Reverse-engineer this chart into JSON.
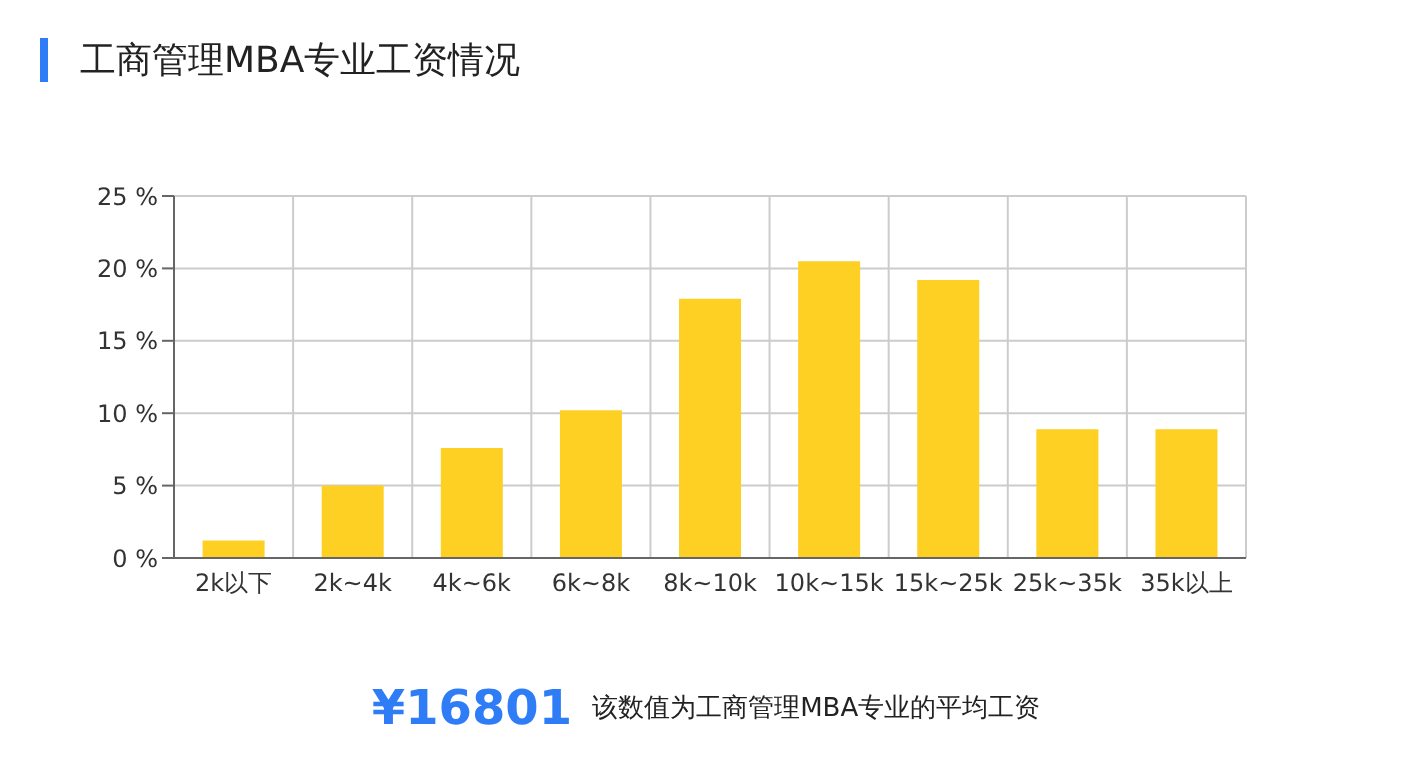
{
  "chart_data": {
    "type": "bar",
    "title": "工商管理MBA专业工资情况",
    "categories": [
      "2k以下",
      "2k~4k",
      "4k~6k",
      "6k~8k",
      "8k~10k",
      "10k~15k",
      "15k~25k",
      "25k~35k",
      "35k以上"
    ],
    "values": [
      1.2,
      5.0,
      7.6,
      10.2,
      17.9,
      20.5,
      19.2,
      8.9,
      8.9
    ],
    "color": "#fdd023",
    "ylim": [
      0,
      25
    ],
    "yticks": [
      {
        "value": 0,
        "label": "0 %"
      },
      {
        "value": 5,
        "label": "5 %"
      },
      {
        "value": 10,
        "label": "10 %"
      },
      {
        "value": 15,
        "label": "15 %"
      },
      {
        "value": 20,
        "label": "20 %"
      },
      {
        "value": 25,
        "label": "25 %"
      }
    ],
    "grid": true,
    "annotations": [
      "¥16801",
      "该数值为工商管理MBA专业的平均工资"
    ]
  }
}
